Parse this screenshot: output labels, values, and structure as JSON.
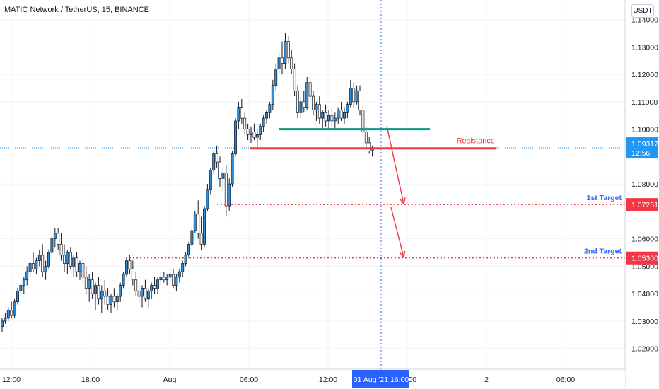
{
  "symbol_title": "MATIC Network / TetherUS, 15, BINANCE",
  "currency": "USDT",
  "price_axis": {
    "ticks": [
      "1.14000",
      "1.13000",
      "1.12000",
      "1.11000",
      "1.10000",
      "1.08000",
      "1.06000",
      "1.05000",
      "1.04000",
      "1.03000",
      "1.02000"
    ],
    "tick_values": [
      1.14,
      1.13,
      1.12,
      1.11,
      1.1,
      1.08,
      1.06,
      1.05,
      1.04,
      1.03,
      1.02
    ]
  },
  "time_axis": {
    "labels": [
      "12:00",
      "18:00",
      "Aug",
      "06:00",
      "12:00",
      "16:00",
      "2",
      "06:00"
    ],
    "crosshair_label": "01 Aug '21   16:00",
    "crosshair_bar_index": 127
  },
  "current_price": {
    "label": "1.09317",
    "countdown": "12:56",
    "value": 1.09317,
    "color": "#2196f3"
  },
  "annotations": {
    "resistance": {
      "text": "Resistance",
      "value": 1.093,
      "color": "#f23645"
    },
    "support_line": {
      "value": 1.1,
      "color": "#089981"
    },
    "target1": {
      "text": "1st Target",
      "price_label": "1.07251",
      "value": 1.07251,
      "color": "#f23645",
      "text_color": "#2962ff"
    },
    "target2": {
      "text": "2nd Target",
      "price_label": "1.05300",
      "value": 1.053,
      "color": "#f23645",
      "text_color": "#2962ff"
    }
  },
  "colors": {
    "up": "#2962ff",
    "up_fill": "#2e8bd6",
    "down": "#ffffff",
    "wick": "#131722"
  },
  "chart_data": {
    "type": "candlestick",
    "title": "MATIC Network / TetherUS, 15, BINANCE",
    "ylim": [
      1.015,
      1.1435
    ],
    "grid": true,
    "candles": [
      [
        1.028,
        1.031,
        1.026,
        1.03
      ],
      [
        1.03,
        1.033,
        1.029,
        1.031
      ],
      [
        1.031,
        1.035,
        1.03,
        1.034
      ],
      [
        1.034,
        1.037,
        1.031,
        1.032
      ],
      [
        1.032,
        1.038,
        1.031,
        1.037
      ],
      [
        1.037,
        1.042,
        1.036,
        1.041
      ],
      [
        1.041,
        1.044,
        1.039,
        1.043
      ],
      [
        1.043,
        1.046,
        1.04,
        1.045
      ],
      [
        1.045,
        1.05,
        1.043,
        1.048
      ],
      [
        1.048,
        1.052,
        1.046,
        1.051
      ],
      [
        1.051,
        1.055,
        1.048,
        1.049
      ],
      [
        1.049,
        1.053,
        1.047,
        1.052
      ],
      [
        1.052,
        1.056,
        1.05,
        1.054
      ],
      [
        1.054,
        1.058,
        1.046,
        1.048
      ],
      [
        1.048,
        1.052,
        1.045,
        1.05
      ],
      [
        1.05,
        1.056,
        1.049,
        1.055
      ],
      [
        1.055,
        1.061,
        1.053,
        1.06
      ],
      [
        1.06,
        1.064,
        1.057,
        1.062
      ],
      [
        1.062,
        1.064,
        1.056,
        1.058
      ],
      [
        1.058,
        1.062,
        1.052,
        1.054
      ],
      [
        1.054,
        1.058,
        1.048,
        1.051
      ],
      [
        1.051,
        1.056,
        1.047,
        1.055
      ],
      [
        1.055,
        1.057,
        1.049,
        1.05
      ],
      [
        1.05,
        1.054,
        1.046,
        1.053
      ],
      [
        1.053,
        1.055,
        1.046,
        1.048
      ],
      [
        1.048,
        1.052,
        1.045,
        1.051
      ],
      [
        1.051,
        1.053,
        1.044,
        1.046
      ],
      [
        1.046,
        1.05,
        1.04,
        1.042
      ],
      [
        1.042,
        1.047,
        1.037,
        1.045
      ],
      [
        1.045,
        1.048,
        1.038,
        1.04
      ],
      [
        1.04,
        1.044,
        1.034,
        1.043
      ],
      [
        1.043,
        1.046,
        1.036,
        1.038
      ],
      [
        1.038,
        1.043,
        1.033,
        1.041
      ],
      [
        1.041,
        1.045,
        1.036,
        1.039
      ],
      [
        1.039,
        1.042,
        1.034,
        1.036
      ],
      [
        1.036,
        1.04,
        1.033,
        1.039
      ],
      [
        1.039,
        1.042,
        1.035,
        1.037
      ],
      [
        1.037,
        1.04,
        1.034,
        1.039
      ],
      [
        1.039,
        1.044,
        1.037,
        1.043
      ],
      [
        1.043,
        1.048,
        1.042,
        1.047
      ],
      [
        1.047,
        1.053,
        1.046,
        1.052
      ],
      [
        1.052,
        1.054,
        1.047,
        1.049
      ],
      [
        1.049,
        1.052,
        1.043,
        1.045
      ],
      [
        1.045,
        1.048,
        1.039,
        1.041
      ],
      [
        1.041,
        1.044,
        1.037,
        1.039
      ],
      [
        1.039,
        1.043,
        1.035,
        1.042
      ],
      [
        1.042,
        1.045,
        1.037,
        1.038
      ],
      [
        1.038,
        1.042,
        1.035,
        1.041
      ],
      [
        1.041,
        1.044,
        1.038,
        1.043
      ],
      [
        1.043,
        1.046,
        1.04,
        1.042
      ],
      [
        1.042,
        1.046,
        1.04,
        1.045
      ],
      [
        1.045,
        1.048,
        1.043,
        1.046
      ],
      [
        1.046,
        1.048,
        1.044,
        1.045
      ],
      [
        1.045,
        1.047,
        1.043,
        1.046
      ],
      [
        1.046,
        1.048,
        1.044,
        1.047
      ],
      [
        1.047,
        1.049,
        1.042,
        1.043
      ],
      [
        1.043,
        1.047,
        1.041,
        1.046
      ],
      [
        1.046,
        1.049,
        1.044,
        1.048
      ],
      [
        1.048,
        1.052,
        1.046,
        1.051
      ],
      [
        1.051,
        1.055,
        1.05,
        1.054
      ],
      [
        1.054,
        1.059,
        1.053,
        1.058
      ],
      [
        1.058,
        1.064,
        1.057,
        1.063
      ],
      [
        1.063,
        1.07,
        1.062,
        1.069
      ],
      [
        1.069,
        1.074,
        1.06,
        1.062
      ],
      [
        1.062,
        1.068,
        1.056,
        1.058
      ],
      [
        1.058,
        1.072,
        1.057,
        1.071
      ],
      [
        1.071,
        1.08,
        1.07,
        1.078
      ],
      [
        1.078,
        1.086,
        1.076,
        1.085
      ],
      [
        1.085,
        1.092,
        1.084,
        1.091
      ],
      [
        1.091,
        1.094,
        1.086,
        1.088
      ],
      [
        1.088,
        1.09,
        1.079,
        1.082
      ],
      [
        1.082,
        1.086,
        1.077,
        1.084
      ],
      [
        1.084,
        1.087,
        1.068,
        1.072
      ],
      [
        1.072,
        1.082,
        1.07,
        1.08
      ],
      [
        1.08,
        1.092,
        1.079,
        1.091
      ],
      [
        1.091,
        1.104,
        1.09,
        1.103
      ],
      [
        1.103,
        1.11,
        1.1,
        1.108
      ],
      [
        1.108,
        1.111,
        1.102,
        1.104
      ],
      [
        1.104,
        1.106,
        1.098,
        1.1
      ],
      [
        1.1,
        1.102,
        1.096,
        1.098
      ],
      [
        1.098,
        1.101,
        1.095,
        1.099
      ],
      [
        1.099,
        1.102,
        1.096,
        1.097
      ],
      [
        1.097,
        1.1,
        1.093,
        1.098
      ],
      [
        1.098,
        1.102,
        1.096,
        1.101
      ],
      [
        1.101,
        1.105,
        1.099,
        1.104
      ],
      [
        1.104,
        1.107,
        1.102,
        1.106
      ],
      [
        1.106,
        1.11,
        1.104,
        1.109
      ],
      [
        1.109,
        1.118,
        1.107,
        1.116
      ],
      [
        1.116,
        1.124,
        1.114,
        1.122
      ],
      [
        1.122,
        1.128,
        1.12,
        1.126
      ],
      [
        1.126,
        1.132,
        1.12,
        1.124
      ],
      [
        1.124,
        1.135,
        1.122,
        1.132
      ],
      [
        1.132,
        1.134,
        1.124,
        1.126
      ],
      [
        1.126,
        1.129,
        1.12,
        1.122
      ],
      [
        1.122,
        1.124,
        1.112,
        1.114
      ],
      [
        1.114,
        1.116,
        1.104,
        1.106
      ],
      [
        1.106,
        1.112,
        1.104,
        1.11
      ],
      [
        1.11,
        1.114,
        1.106,
        1.108
      ],
      [
        1.108,
        1.119,
        1.107,
        1.117
      ],
      [
        1.117,
        1.119,
        1.11,
        1.112
      ],
      [
        1.112,
        1.114,
        1.105,
        1.107
      ],
      [
        1.107,
        1.11,
        1.103,
        1.109
      ],
      [
        1.109,
        1.112,
        1.102,
        1.104
      ],
      [
        1.104,
        1.107,
        1.1,
        1.106
      ],
      [
        1.106,
        1.109,
        1.101,
        1.103
      ],
      [
        1.103,
        1.107,
        1.1,
        1.105
      ],
      [
        1.105,
        1.108,
        1.101,
        1.103
      ],
      [
        1.103,
        1.106,
        1.1,
        1.104
      ],
      [
        1.104,
        1.108,
        1.102,
        1.107
      ],
      [
        1.107,
        1.11,
        1.103,
        1.104
      ],
      [
        1.104,
        1.108,
        1.102,
        1.106
      ],
      [
        1.106,
        1.11,
        1.104,
        1.109
      ],
      [
        1.109,
        1.118,
        1.108,
        1.115
      ],
      [
        1.115,
        1.117,
        1.108,
        1.11
      ],
      [
        1.11,
        1.116,
        1.109,
        1.114
      ],
      [
        1.114,
        1.116,
        1.105,
        1.107
      ],
      [
        1.107,
        1.109,
        1.097,
        1.099
      ],
      [
        1.099,
        1.101,
        1.093,
        1.095
      ],
      [
        1.095,
        1.097,
        1.091,
        1.092
      ],
      [
        1.092,
        1.094,
        1.09,
        1.093
      ]
    ]
  }
}
